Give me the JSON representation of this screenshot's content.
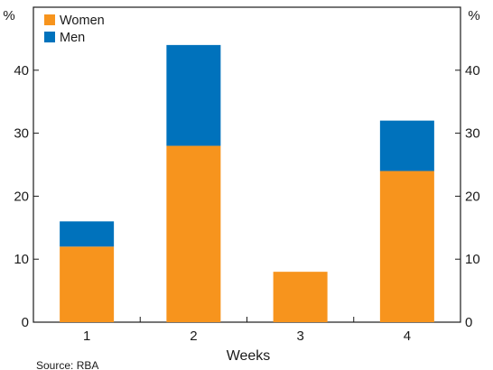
{
  "chart_data": {
    "type": "bar",
    "stacked": true,
    "categories": [
      "1",
      "2",
      "3",
      "4"
    ],
    "series": [
      {
        "name": "Women",
        "values": [
          12,
          28,
          8,
          24
        ],
        "color": "#f7941d"
      },
      {
        "name": "Men",
        "values": [
          4,
          16,
          0,
          8
        ],
        "color": "#0072bc"
      }
    ],
    "xlabel": "Weeks",
    "y_unit_left": "%",
    "y_unit_right": "%",
    "ylim": [
      0,
      50
    ],
    "yticks": [
      "0",
      "10",
      "20",
      "30",
      "40"
    ],
    "grid": false,
    "legend": "top-left",
    "source": "Source: RBA"
  }
}
